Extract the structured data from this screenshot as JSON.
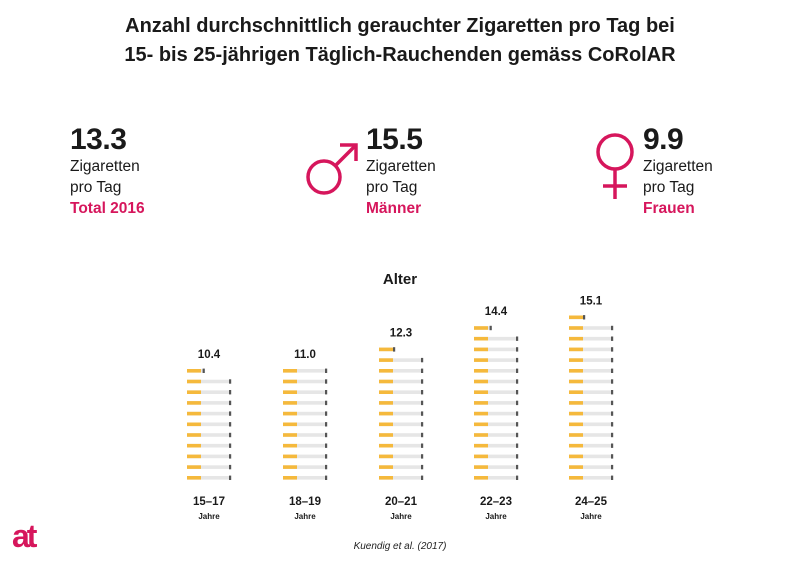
{
  "title": {
    "line1": "Anzahl durchschnittlich gerauchter Zigaretten pro Tag bei",
    "line2": "15- bis 25-jährigen Täglich-Rauchenden gemäss CoRolAR"
  },
  "stats": [
    {
      "value": "13.3",
      "line1": "Zigaretten",
      "line2": "pro Tag",
      "group": "Total 2016",
      "icon": "none"
    },
    {
      "value": "15.5",
      "line1": "Zigaretten",
      "line2": "pro Tag",
      "group": "Männer",
      "icon": "male-symbol-icon"
    },
    {
      "value": "9.9",
      "line1": "Zigaretten",
      "line2": "pro Tag",
      "group": "Frauen",
      "icon": "female-symbol-icon"
    }
  ],
  "colors": {
    "accent": "#d6165c",
    "filter": "#f5b93c",
    "paper": "#e6e6e6",
    "ash": "#555555",
    "text": "#1a1a1a"
  },
  "chart_data": {
    "type": "bar",
    "xlabel": "Alter",
    "categories": [
      "15–17",
      "18–19",
      "20–21",
      "22–23",
      "24–25"
    ],
    "category_unit": "Jahre",
    "values": [
      10.4,
      11.0,
      12.3,
      14.4,
      15.1
    ],
    "value_labels": [
      "10.4",
      "11.0",
      "12.3",
      "14.4",
      "15.1"
    ],
    "encoding": "stack of cigarette icons, one icon = 1 cigarette, partial icon for fraction",
    "grid": false,
    "legend": "none"
  },
  "source": "Kuendig et al. (2017)",
  "logo": {
    "text": "at"
  }
}
